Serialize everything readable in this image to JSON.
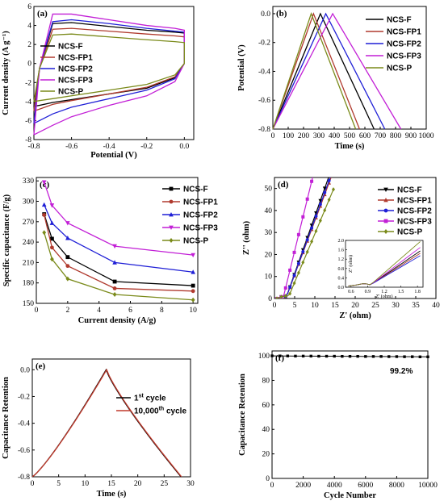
{
  "colors": {
    "NCS-F": "#000000",
    "NCS-FP1": "#b03a2e",
    "NCS-FP2": "#1f1fd6",
    "NCS-FP3": "#c21fd6",
    "NCS-P": "#7a8a1a",
    "first_cycle": "#000000",
    "tenk_cycle": "#c0392b"
  },
  "chart_data": [
    {
      "panel": "a",
      "type": "line",
      "panel_label": "(a)",
      "xlabel": "Potential (V)",
      "ylabel": "Current density (A g⁻¹)",
      "xlim": [
        -0.8,
        0.05
      ],
      "ylim": [
        -8,
        6
      ],
      "xticks": [
        "-0.8",
        "-0.6",
        "-0.4",
        "-0.2",
        "0.0"
      ],
      "xtick_values": [
        -0.8,
        -0.6,
        -0.4,
        -0.2,
        0.0
      ],
      "yticks": [
        "-8",
        "-6",
        "-4",
        "-2",
        "0",
        "2",
        "4",
        "6"
      ],
      "ytick_values": [
        -8,
        -6,
        -4,
        -2,
        0,
        2,
        4,
        6
      ],
      "legend_position": "center-left",
      "series": [
        {
          "name": "NCS-F",
          "x": [
            -0.8,
            -0.77,
            -0.7,
            -0.6,
            -0.4,
            -0.2,
            -0.05,
            0.0,
            0.0,
            -0.05,
            -0.2,
            -0.4,
            -0.6,
            -0.7,
            -0.77,
            -0.8
          ],
          "y": [
            -4.5,
            -0.5,
            4.2,
            4.3,
            3.9,
            3.5,
            3.3,
            3.2,
            0.0,
            -1.5,
            -2.6,
            -3.2,
            -3.8,
            -4.1,
            -4.4,
            -4.5
          ]
        },
        {
          "name": "NCS-FP1",
          "x": [
            -0.8,
            -0.77,
            -0.7,
            -0.6,
            -0.4,
            -0.2,
            -0.05,
            0.0,
            0.0,
            -0.05,
            -0.2,
            -0.4,
            -0.6,
            -0.7,
            -0.77,
            -0.8
          ],
          "y": [
            -5.0,
            -0.5,
            3.6,
            3.7,
            3.4,
            3.1,
            2.9,
            2.8,
            0.0,
            -1.4,
            -2.5,
            -3.2,
            -3.9,
            -4.3,
            -4.8,
            -5.0
          ]
        },
        {
          "name": "NCS-FP2",
          "x": [
            -0.8,
            -0.77,
            -0.7,
            -0.6,
            -0.4,
            -0.2,
            -0.05,
            0.0,
            0.0,
            -0.05,
            -0.2,
            -0.4,
            -0.6,
            -0.7,
            -0.77,
            -0.8
          ],
          "y": [
            -6.3,
            -0.5,
            4.4,
            4.6,
            4.2,
            3.7,
            3.4,
            3.3,
            0.0,
            -1.6,
            -2.8,
            -3.7,
            -4.6,
            -5.3,
            -6.0,
            -6.3
          ]
        },
        {
          "name": "NCS-FP3",
          "x": [
            -0.8,
            -0.77,
            -0.7,
            -0.6,
            -0.4,
            -0.2,
            -0.05,
            0.0,
            0.0,
            -0.05,
            -0.2,
            -0.4,
            -0.6,
            -0.7,
            -0.77,
            -0.8
          ],
          "y": [
            -7.5,
            -0.5,
            5.2,
            5.2,
            4.6,
            4.0,
            3.7,
            3.5,
            0.0,
            -1.9,
            -3.4,
            -4.4,
            -5.6,
            -6.5,
            -7.2,
            -7.5
          ]
        },
        {
          "name": "NCS-P",
          "x": [
            -0.8,
            -0.77,
            -0.7,
            -0.6,
            -0.4,
            -0.2,
            -0.05,
            0.0,
            0.0,
            -0.05,
            -0.2,
            -0.4,
            -0.6,
            -0.7,
            -0.77,
            -0.8
          ],
          "y": [
            -4.0,
            -0.5,
            3.0,
            3.1,
            2.8,
            2.5,
            2.3,
            2.2,
            0.0,
            -1.2,
            -2.2,
            -2.8,
            -3.4,
            -3.7,
            -3.9,
            -4.0
          ]
        }
      ]
    },
    {
      "panel": "b",
      "type": "line",
      "panel_label": "(b)",
      "xlabel": "Time (s)",
      "ylabel": "Potential (V)",
      "xlim": [
        0,
        1000
      ],
      "ylim": [
        -0.8,
        0.05
      ],
      "xticks": [
        "0",
        "100",
        "200",
        "300",
        "400",
        "500",
        "600",
        "700",
        "800",
        "900",
        "1000"
      ],
      "xtick_values": [
        0,
        100,
        200,
        300,
        400,
        500,
        600,
        700,
        800,
        900,
        1000
      ],
      "yticks": [
        "-0.8",
        "-0.6",
        "-0.4",
        "-0.2",
        "0.0"
      ],
      "ytick_values": [
        -0.8,
        -0.6,
        -0.4,
        -0.2,
        0.0
      ],
      "legend_position": "top-right",
      "series": [
        {
          "name": "NCS-F",
          "peak": 310,
          "end": 660
        },
        {
          "name": "NCS-FP1",
          "peak": 265,
          "end": 565
        },
        {
          "name": "NCS-FP2",
          "peak": 345,
          "end": 730
        },
        {
          "name": "NCS-FP3",
          "peak": 390,
          "end": 835
        },
        {
          "name": "NCS-P",
          "peak": 250,
          "end": 540
        }
      ]
    },
    {
      "panel": "c",
      "type": "line",
      "panel_label": "(c)",
      "xlabel": "Current density (A/g)",
      "ylabel": "Specific capacitance (F/g)",
      "xlim": [
        0,
        10.3
      ],
      "ylim": [
        150,
        335
      ],
      "xticks": [
        "0",
        "2",
        "4",
        "6",
        "8",
        "10"
      ],
      "xtick_values": [
        0,
        2,
        4,
        6,
        8,
        10
      ],
      "yticks": [
        "150",
        "180",
        "210",
        "240",
        "270",
        "300",
        "330"
      ],
      "ytick_values": [
        150,
        180,
        210,
        240,
        270,
        300,
        330
      ],
      "legend_position": "top-right",
      "x": [
        0.5,
        1,
        2,
        5,
        10
      ],
      "series": [
        {
          "name": "NCS-F",
          "marker": "square",
          "values": [
            281,
            245,
            218,
            182,
            176
          ]
        },
        {
          "name": "NCS-FP1",
          "marker": "circle",
          "values": [
            280,
            232,
            205,
            172,
            168
          ]
        },
        {
          "name": "NCS-FP2",
          "marker": "triangle",
          "values": [
            295,
            268,
            246,
            210,
            196
          ]
        },
        {
          "name": "NCS-FP3",
          "marker": "down-triangle",
          "values": [
            328,
            294,
            268,
            234,
            221
          ]
        },
        {
          "name": "NCS-P",
          "marker": "diamond",
          "values": [
            254,
            215,
            186,
            163,
            155
          ]
        }
      ]
    },
    {
      "panel": "d",
      "type": "scatter",
      "panel_label": "(d)",
      "xlabel": "Z' (ohm)",
      "ylabel": "Z'' (ohm)",
      "xlim": [
        0,
        40
      ],
      "ylim": [
        0,
        55
      ],
      "xticks": [
        "0",
        "5",
        "10",
        "15",
        "20",
        "25",
        "30",
        "35",
        "40"
      ],
      "xtick_values": [
        0,
        5,
        10,
        15,
        20,
        25,
        30,
        35,
        40
      ],
      "yticks": [
        "0",
        "10",
        "20",
        "30",
        "40",
        "50"
      ],
      "ytick_values": [
        0,
        10,
        20,
        30,
        40,
        50
      ],
      "legend_position": "top-right",
      "series": [
        {
          "name": "NCS-F",
          "marker": "down-triangle",
          "z_start": 0.6,
          "slope": 5.2,
          "knee": 3.0
        },
        {
          "name": "NCS-FP1",
          "marker": "triangle",
          "z_start": 0.6,
          "slope": 4.9,
          "knee": 3.0
        },
        {
          "name": "NCS-FP2",
          "marker": "circle",
          "z_start": 0.6,
          "slope": 5.0,
          "knee": 3.0
        },
        {
          "name": "NCS-FP3",
          "marker": "square",
          "z_start": 0.6,
          "slope": 7.5,
          "knee": 2.2
        },
        {
          "name": "NCS-P",
          "marker": "diamond",
          "z_start": 0.6,
          "slope": 4.4,
          "knee": 3.6
        }
      ],
      "inset": {
        "xlabel": "Z' (ohm)",
        "ylabel": "Z'' (ohm)",
        "xlim": [
          0.5,
          1.9
        ],
        "ylim": [
          0,
          2.0
        ],
        "xticks": [
          "0.6",
          "0.9",
          "1.2",
          "1.5",
          "1.8"
        ],
        "xtick_values": [
          0.6,
          0.9,
          1.2,
          1.5,
          1.8
        ],
        "yticks": [
          "0.0",
          "0.4",
          "0.8",
          "1.2",
          "1.6",
          "2.0"
        ],
        "ytick_values": [
          0.0,
          0.4,
          0.8,
          1.2,
          1.6,
          2.0
        ],
        "ends": [
          {
            "name": "NCS-F",
            "end_y": 1.55
          },
          {
            "name": "NCS-FP1",
            "end_y": 1.45
          },
          {
            "name": "NCS-FP2",
            "end_y": 1.35
          },
          {
            "name": "NCS-FP3",
            "end_y": 1.7
          },
          {
            "name": "NCS-P",
            "end_y": 1.95
          }
        ]
      }
    },
    {
      "panel": "e",
      "type": "line",
      "panel_label": "(e)",
      "xlabel": "Time (s)",
      "ylabel": "Capacitance Retention",
      "xlim": [
        0,
        30
      ],
      "ylim": [
        -0.8,
        0.08
      ],
      "xticks": [
        "0",
        "5",
        "10",
        "15",
        "20",
        "25",
        "30"
      ],
      "xtick_values": [
        0,
        5,
        10,
        15,
        20,
        25,
        30
      ],
      "yticks": [
        "-0.8",
        "-0.6",
        "-0.4",
        "-0.2",
        "0.0"
      ],
      "ytick_values": [
        -0.8,
        -0.6,
        -0.4,
        -0.2,
        0.0
      ],
      "legend_position": "top-right",
      "legend": [
        {
          "base": "1",
          "sup": "st",
          "tail": " cycle",
          "color_key": "first_cycle"
        },
        {
          "base": "10,000",
          "sup": "th",
          "tail": " cycle",
          "color_key": "tenk_cycle"
        }
      ],
      "series": [
        {
          "name": "1st cycle",
          "peak": 14,
          "end": 28.2
        },
        {
          "name": "10,000th cycle",
          "peak": 14.1,
          "end": 28.3
        }
      ]
    },
    {
      "panel": "f",
      "type": "scatter",
      "panel_label": "(f)",
      "xlabel": "Cycle Number",
      "ylabel": "Capacitance Retention",
      "xlim": [
        0,
        10000
      ],
      "ylim": [
        0,
        104
      ],
      "xticks": [
        "0",
        "2000",
        "4000",
        "6000",
        "8000",
        "10000"
      ],
      "xtick_values": [
        0,
        2000,
        4000,
        6000,
        8000,
        10000
      ],
      "yticks": [
        "0",
        "20",
        "40",
        "60",
        "80",
        "100"
      ],
      "ytick_values": [
        0,
        20,
        40,
        60,
        80,
        100
      ],
      "annotation": "99.2%",
      "x": [
        0,
        500,
        1000,
        1500,
        2000,
        2500,
        3000,
        3500,
        4000,
        4500,
        5000,
        5500,
        6000,
        6500,
        7000,
        7500,
        8000,
        8500,
        9000,
        9500,
        10000
      ],
      "values": [
        100,
        99.9,
        99.9,
        99.8,
        99.8,
        99.8,
        99.7,
        99.7,
        99.7,
        99.6,
        99.6,
        99.6,
        99.5,
        99.5,
        99.5,
        99.4,
        99.4,
        99.3,
        99.3,
        99.2,
        99.2
      ]
    }
  ]
}
